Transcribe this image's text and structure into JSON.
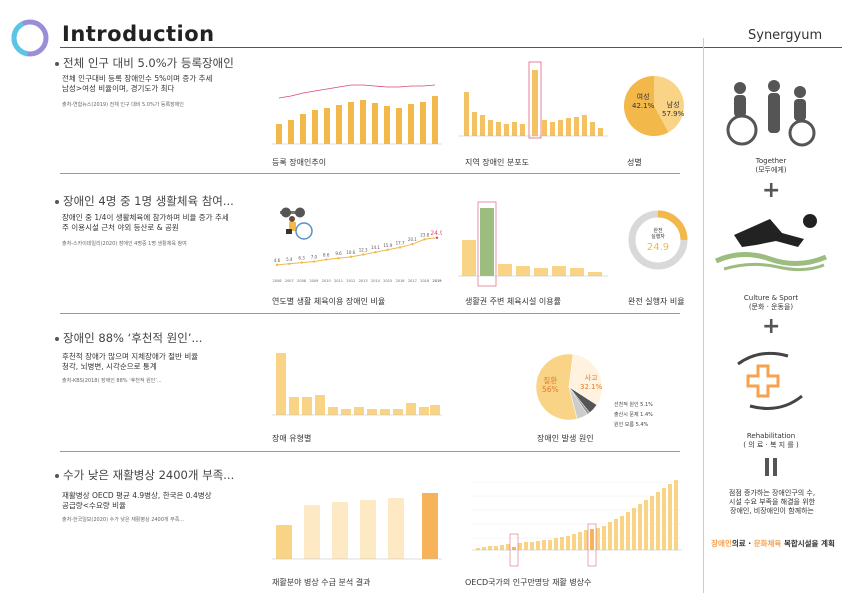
{
  "header": {
    "title": "Introduction",
    "brand": "Synergyum"
  },
  "sections": [
    {
      "heading": "전체 인구 대비 5.0%가 등록장애인",
      "body": [
        "전체 인구대비 등록 장애인수 5%이며 증가 추세",
        "남성>여성 비율이며, 경기도가 최다"
      ],
      "source": "출처-연합뉴스(2019) 전체 인구 대비 5.0%가 등록장애인",
      "captions": [
        "등록 장애인추이",
        "지역 장애인 분포도",
        "성별"
      ]
    },
    {
      "heading": "장애인 4명 중 1명 생활체육 참여...",
      "body": [
        "장애인 중 1/4이 생활체육에 참가하며 비율 증가 추세",
        "주 이용시설 근처 야외 등산로 & 공원"
      ],
      "source": "출처-스카이데일리(2020) 장애인 4명중 1명 생활체육 참여",
      "captions": [
        "연도별 생활 체육이용 장애인 비율",
        "생활권 주변 체육시설 이용률",
        "완전 실행자 비율"
      ]
    },
    {
      "heading": "장애인 88% ‘후천적 원인’...",
      "body": [
        "후천적 장애가 많으며 지체장애가 절반 비율",
        "청각, 뇌병변, 시각순으로 통계"
      ],
      "source": "출처-KBS(2018) 장애인 88% ‘후천적 원인’...",
      "captions": [
        "장애 유형별",
        "장애인 발생 원인"
      ]
    },
    {
      "heading": "수가 낮은 재활병상 2400개 부족...",
      "body": [
        "재활병상 OECD  평균 4.9병상, 한국은 0.4병상",
        "공급량<수요량 비율"
      ],
      "source": "출처-한국일보(2020) 수가 낮은 재활병상 2400개 부족...",
      "captions": [
        "재활분야 병상 수급 분석 결과",
        "OECD국가의 인구만명당 재활 병상수"
      ]
    }
  ],
  "gender_pie": {
    "female_label": "여성",
    "female_value": "42.1%",
    "male_label": "남성",
    "male_value": "57.9%",
    "female_pct": 42.1
  },
  "completion_ring": {
    "label": "완전\n실행자",
    "value": "24.9",
    "pct": 24.9
  },
  "cause_pie": {
    "disease_label": "질환",
    "disease_value": "56%",
    "accident_label": "사고",
    "accident_value": "32.1%",
    "notes": [
      "선천적 원인 5.1%",
      "출산시 문제 1.4%",
      "원인 모름 5.4%"
    ],
    "slices": [
      56,
      32.1,
      5.1,
      1.4,
      5.4
    ]
  },
  "sports_line": {
    "years": [
      "2006",
      "2007",
      "2008",
      "2009",
      "2010",
      "2011",
      "2012",
      "2013",
      "2014",
      "2015",
      "2016",
      "2017",
      "2018",
      "2019"
    ],
    "values": [
      4.6,
      5.4,
      6.3,
      7.0,
      8.6,
      9.6,
      10.6,
      12.3,
      14.1,
      15.9,
      17.7,
      20.1,
      23.8,
      24.9
    ],
    "labels": [
      "4.6",
      "5.4",
      "6.3",
      "7.0",
      "8.6",
      "9.6",
      "10.6",
      "12.3",
      "14.1",
      "15.9",
      "17.7",
      "20.1",
      "23.8",
      "24.9"
    ]
  },
  "sidebar": {
    "together": "Together\n(모두에게)",
    "culture": "Culture & Sport\n(문화 · 운동을)",
    "rehab": "Rehabilitation\n( 의 료 · 복 지 를 )",
    "desc": "점점 증가하는 장애인구의 수,\n시설 수요 부족을 해결을 위한\n장애인, 비장애인이 함께하는",
    "plan_a": "장애인",
    "plan_b": "의료 · ",
    "plan_c": "문화체육",
    "plan_d": " 복합시설",
    "plan_e": "을 계획"
  },
  "colors": {
    "gold": "#f2b84a",
    "green": "#9cbd7f",
    "orange": "#f6a24f",
    "highlight": "#d94a6a",
    "gray": "#888"
  }
}
